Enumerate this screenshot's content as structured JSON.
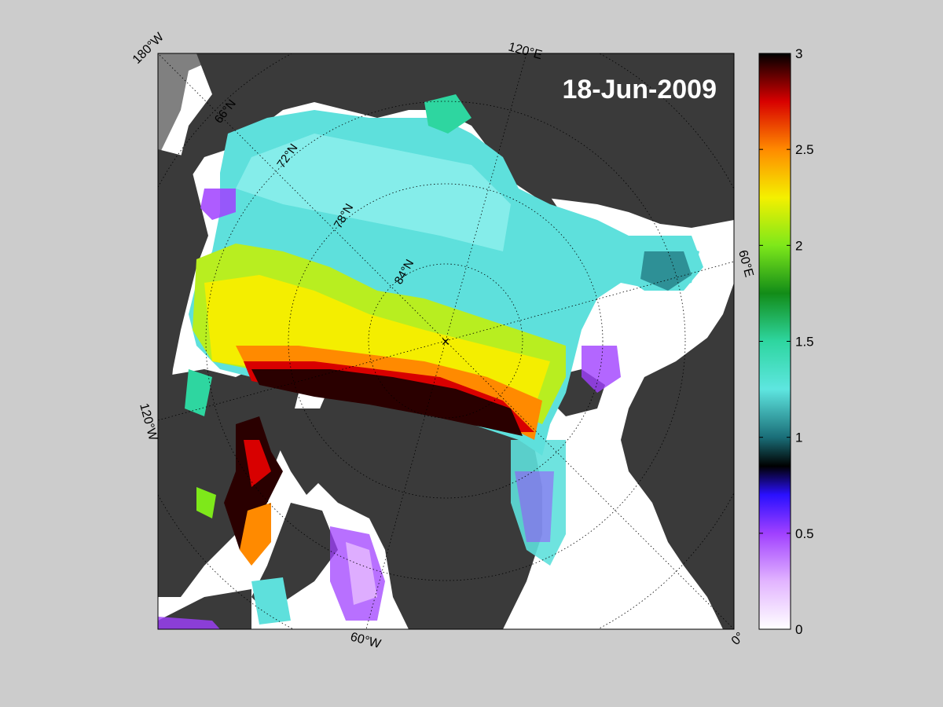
{
  "map": {
    "date_label": "18-Jun-2009",
    "pole_marker": "×",
    "meridian_labels": {
      "lon_180w": "180°W",
      "lon_120e": "120°E",
      "lon_60e": "60°E",
      "lon_0": "0°",
      "lon_60w": "60°W",
      "lon_120w": "120°W"
    },
    "parallel_labels": {
      "lat_66n": "66°N",
      "lat_72n": "72°N",
      "lat_78n": "78°N",
      "lat_84n": "84°N"
    },
    "colors": {
      "figure_background": "#cccccc",
      "land": "#3a3a3a",
      "ocean_open": "#ffffff",
      "grid": "#000000",
      "outside_domain": "#808080"
    }
  },
  "colorbar": {
    "min": 0,
    "max": 3,
    "tick_labels": [
      "0",
      "0.5",
      "1",
      "1.5",
      "2",
      "2.5",
      "3"
    ],
    "colormap_stops": [
      {
        "value": 0.0,
        "color": "#ffffff"
      },
      {
        "value": 0.25,
        "color": "#e2b4ff"
      },
      {
        "value": 0.5,
        "color": "#a040ff"
      },
      {
        "value": 0.7,
        "color": "#2a10ff"
      },
      {
        "value": 0.85,
        "color": "#000000"
      },
      {
        "value": 1.0,
        "color": "#1a6e78"
      },
      {
        "value": 1.25,
        "color": "#5ee6e0"
      },
      {
        "value": 1.5,
        "color": "#2ed6a0"
      },
      {
        "value": 1.75,
        "color": "#128c18"
      },
      {
        "value": 2.0,
        "color": "#7ee81a"
      },
      {
        "value": 2.25,
        "color": "#f4f000"
      },
      {
        "value": 2.5,
        "color": "#ff8a00"
      },
      {
        "value": 2.75,
        "color": "#d80000"
      },
      {
        "value": 3.0,
        "color": "#000000"
      }
    ]
  }
}
